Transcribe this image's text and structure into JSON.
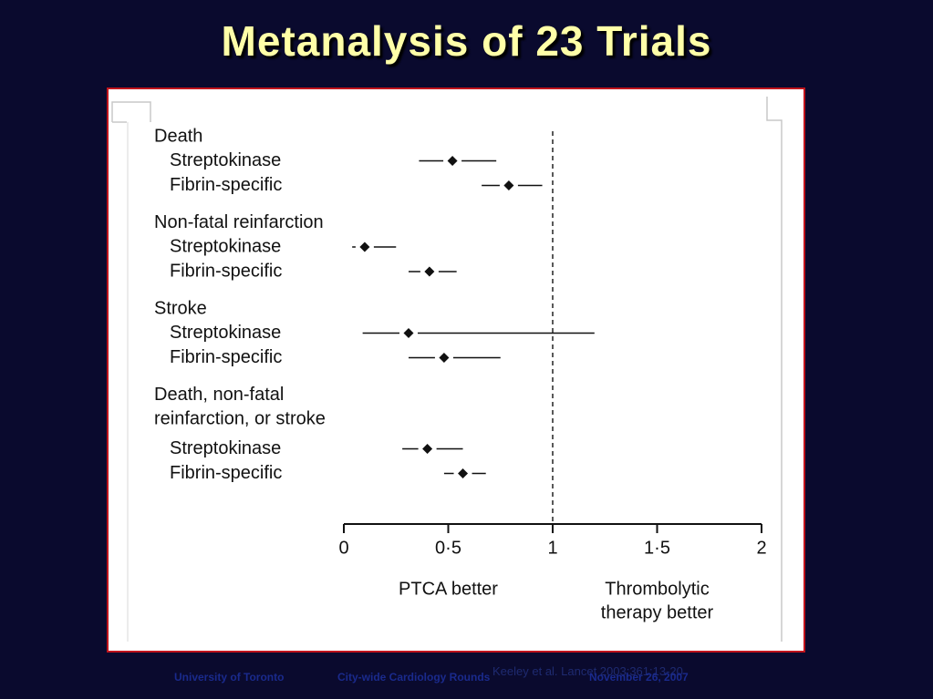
{
  "slide": {
    "title": "Metanalysis of 23 Trials",
    "footer_left": "University of Toronto",
    "footer_center": "City-wide Cardiology Rounds",
    "footer_right": "November 26, 2007",
    "citation_overlay": "Keeley et al. Lancet 2003;361:13-20"
  },
  "colors": {
    "background": "#0a0a2e",
    "title": "#ffffa8",
    "panel_border": "#c0141c",
    "footer": "#1a2a8c"
  },
  "chart_data": {
    "type": "forest",
    "xlim": [
      0,
      2
    ],
    "ticks": [
      0,
      0.5,
      1,
      1.5,
      2
    ],
    "tick_labels": [
      "0",
      "0·5",
      "1",
      "1·5",
      "2"
    ],
    "reference_line": 1,
    "axis_captions": {
      "left": "PTCA better",
      "right_lines": [
        "Thrombolytic",
        "therapy better"
      ]
    },
    "groups": [
      {
        "label_lines": [
          "Death"
        ],
        "rows": [
          {
            "label": "Streptokinase",
            "estimate": 0.52,
            "lower": 0.36,
            "upper": 0.73
          },
          {
            "label": "Fibrin-specific",
            "estimate": 0.79,
            "lower": 0.66,
            "upper": 0.95
          }
        ]
      },
      {
        "label_lines": [
          "Non-fatal reinfarction"
        ],
        "rows": [
          {
            "label": "Streptokinase",
            "estimate": 0.1,
            "lower": 0.04,
            "upper": 0.25
          },
          {
            "label": "Fibrin-specific",
            "estimate": 0.41,
            "lower": 0.31,
            "upper": 0.54
          }
        ]
      },
      {
        "label_lines": [
          "Stroke"
        ],
        "rows": [
          {
            "label": "Streptokinase",
            "estimate": 0.31,
            "lower": 0.09,
            "upper": 1.2
          },
          {
            "label": "Fibrin-specific",
            "estimate": 0.48,
            "lower": 0.31,
            "upper": 0.75
          }
        ]
      },
      {
        "label_lines": [
          "Death, non-fatal",
          "reinfarction, or stroke"
        ],
        "rows": [
          {
            "label": "Streptokinase",
            "estimate": 0.4,
            "lower": 0.28,
            "upper": 0.57
          },
          {
            "label": "Fibrin-specific",
            "estimate": 0.57,
            "lower": 0.48,
            "upper": 0.68
          }
        ]
      }
    ]
  }
}
